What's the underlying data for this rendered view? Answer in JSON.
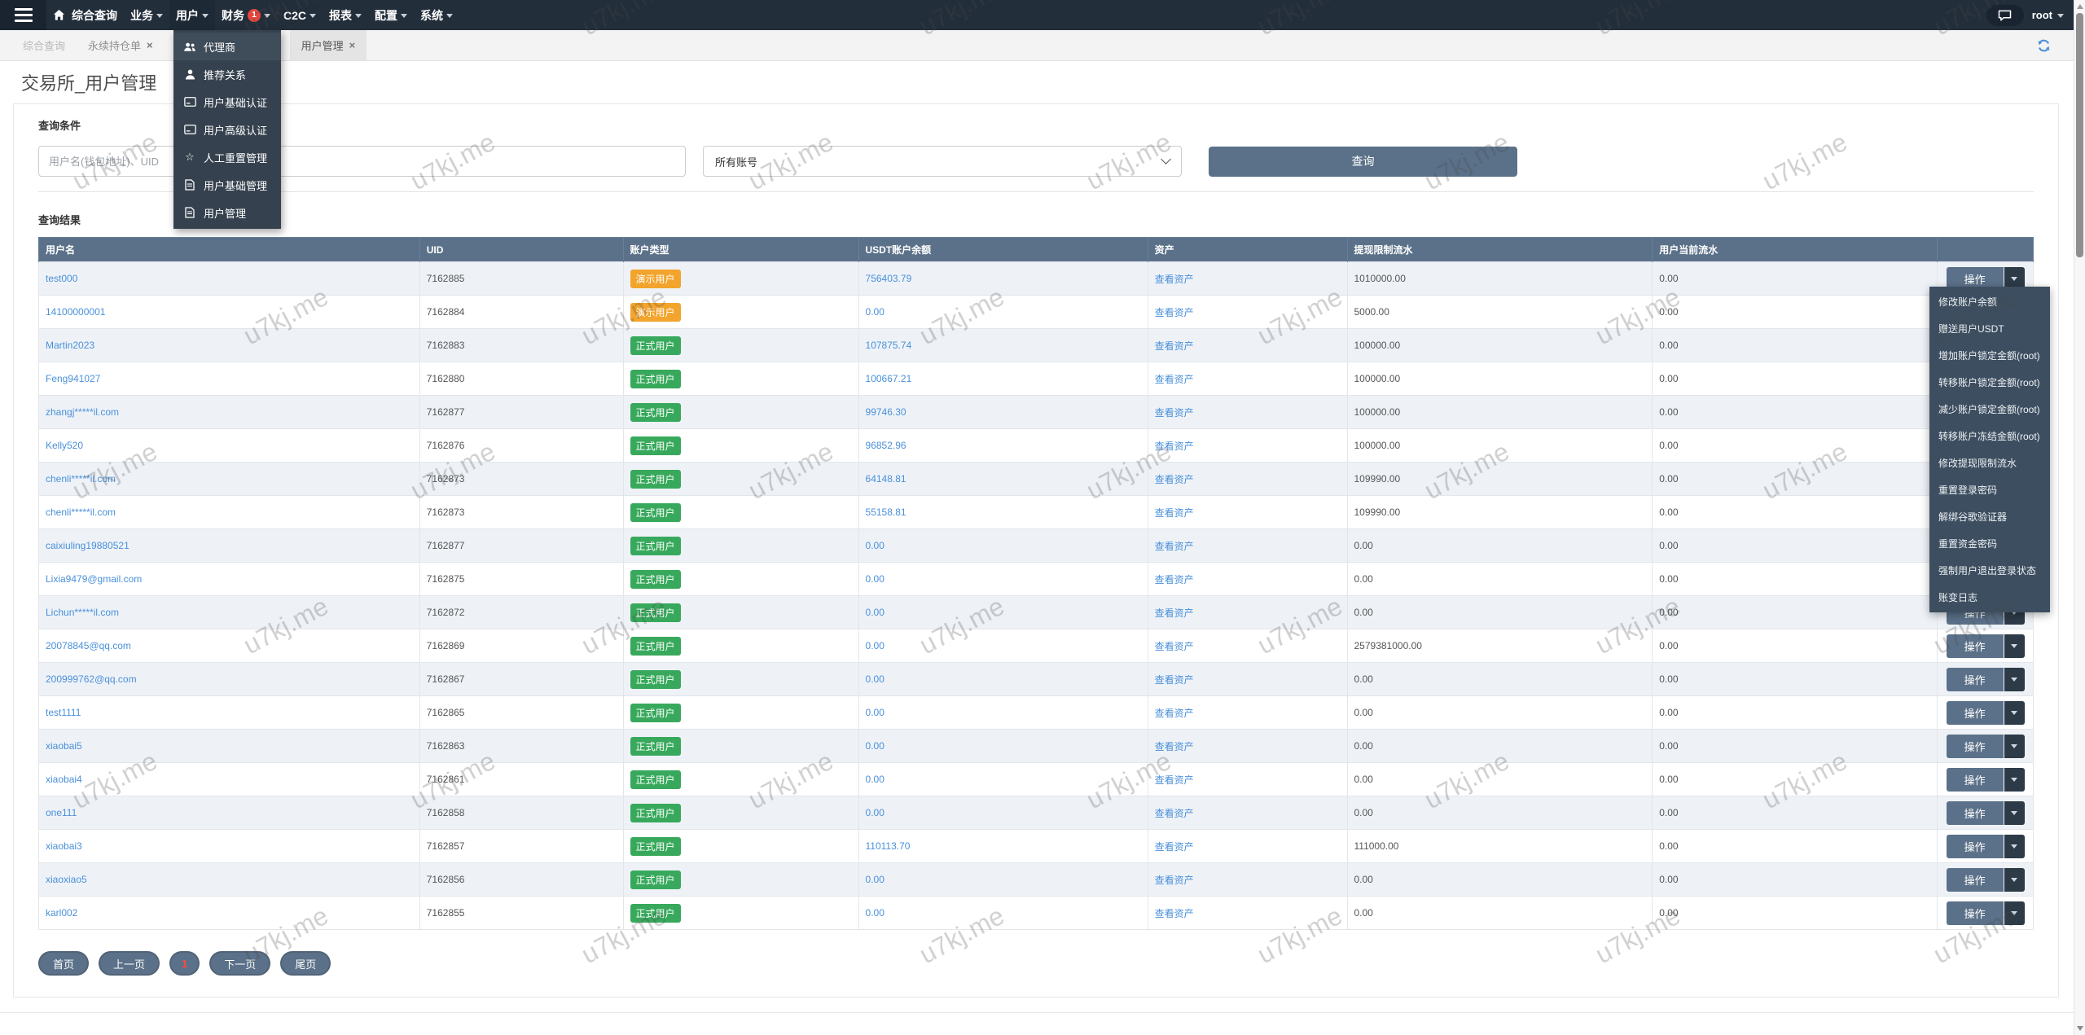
{
  "watermark": {
    "text": "u7kj.me"
  },
  "navbar": {
    "menu_items": [
      {
        "label": "综合查询"
      },
      {
        "label": "业务"
      },
      {
        "label": "用户"
      },
      {
        "label": "财务",
        "badge": "1"
      },
      {
        "label": "C2C"
      },
      {
        "label": "报表"
      },
      {
        "label": "配置"
      },
      {
        "label": "系统"
      }
    ],
    "user": {
      "name": "root"
    }
  },
  "user_dropdown": {
    "items": [
      {
        "icon": "users-icon",
        "label": "代理商"
      },
      {
        "icon": "user-icon",
        "label": "推荐关系"
      },
      {
        "icon": "id-card-icon",
        "label": "用户基础认证"
      },
      {
        "icon": "id-card-icon",
        "label": "用户高级认证"
      },
      {
        "icon": "star-icon",
        "label": "人工重置管理"
      },
      {
        "icon": "file-icon",
        "label": "用户基础管理"
      },
      {
        "icon": "file-icon",
        "label": "用户管理"
      }
    ]
  },
  "tabs": [
    {
      "label": "综合查询",
      "closable": false
    },
    {
      "label": "永续持仓单",
      "closable": true
    },
    {
      "label": "用户管理",
      "closable": true,
      "active": true
    }
  ],
  "page": {
    "title": "交易所_用户管理"
  },
  "query": {
    "section_title": "查询条件",
    "input_placeholder": "用户名(钱包地址)、UID",
    "select_value": "所有账号",
    "search_button": "查询"
  },
  "results": {
    "section_title": "查询结果",
    "columns": [
      "用户名",
      "UID",
      "账户类型",
      "USDT账户余额",
      "资产",
      "提现限制流水",
      "用户当前流水",
      ""
    ],
    "asset_link": "查看资产",
    "action_label": "操作",
    "badge_styles": {
      "demo": {
        "label": "演示用户",
        "color": "#f3a42c"
      },
      "official": {
        "label": "正式用户",
        "color": "#38a95c"
      }
    },
    "rows": [
      {
        "username": "test000",
        "uid": "7162885",
        "type": "demo",
        "usdt": "756403.79",
        "withdraw_limit": "1010000.00",
        "current_flow": "0.00"
      },
      {
        "username": "14100000001",
        "uid": "7162884",
        "type": "demo",
        "usdt": "0.00",
        "withdraw_limit": "5000.00",
        "current_flow": "0.00"
      },
      {
        "username": "Martin2023",
        "uid": "7162883",
        "type": "official",
        "usdt": "107875.74",
        "withdraw_limit": "100000.00",
        "current_flow": "0.00"
      },
      {
        "username": "Feng941027",
        "uid": "7162880",
        "type": "official",
        "usdt": "100667.21",
        "withdraw_limit": "100000.00",
        "current_flow": "0.00"
      },
      {
        "username": "zhangj*****il.com",
        "uid": "7162877",
        "type": "official",
        "usdt": "99746.30",
        "withdraw_limit": "100000.00",
        "current_flow": "0.00"
      },
      {
        "username": "Kelly520",
        "uid": "7162876",
        "type": "official",
        "usdt": "96852.96",
        "withdraw_limit": "100000.00",
        "current_flow": "0.00"
      },
      {
        "username": "chenli*****il.com",
        "uid": "7162873",
        "type": "official",
        "usdt": "64148.81",
        "withdraw_limit": "109990.00",
        "current_flow": "0.00"
      },
      {
        "username": "chenli*****il.com",
        "uid": "7162873",
        "type": "official",
        "usdt": "55158.81",
        "withdraw_limit": "109990.00",
        "current_flow": "0.00"
      },
      {
        "username": "caixiuling19880521",
        "uid": "7162877",
        "type": "official",
        "usdt": "0.00",
        "withdraw_limit": "0.00",
        "current_flow": "0.00"
      },
      {
        "username": "Lixia9479@gmail.com",
        "uid": "7162875",
        "type": "official",
        "usdt": "0.00",
        "withdraw_limit": "0.00",
        "current_flow": "0.00"
      },
      {
        "username": "Lichun*****il.com",
        "uid": "7162872",
        "type": "official",
        "usdt": "0.00",
        "withdraw_limit": "0.00",
        "current_flow": "0.00"
      },
      {
        "username": "20078845@qq.com",
        "uid": "7162869",
        "type": "official",
        "usdt": "0.00",
        "withdraw_limit": "2579381000.00",
        "current_flow": "0.00"
      },
      {
        "username": "200999762@qq.com",
        "uid": "7162867",
        "type": "official",
        "usdt": "0.00",
        "withdraw_limit": "0.00",
        "current_flow": "0.00"
      },
      {
        "username": "test1111",
        "uid": "7162865",
        "type": "official",
        "usdt": "0.00",
        "withdraw_limit": "0.00",
        "current_flow": "0.00"
      },
      {
        "username": "xiaobai5",
        "uid": "7162863",
        "type": "official",
        "usdt": "0.00",
        "withdraw_limit": "0.00",
        "current_flow": "0.00"
      },
      {
        "username": "xiaobai4",
        "uid": "7162861",
        "type": "official",
        "usdt": "0.00",
        "withdraw_limit": "0.00",
        "current_flow": "0.00"
      },
      {
        "username": "one111",
        "uid": "7162858",
        "type": "official",
        "usdt": "0.00",
        "withdraw_limit": "0.00",
        "current_flow": "0.00"
      },
      {
        "username": "xiaobai3",
        "uid": "7162857",
        "type": "official",
        "usdt": "110113.70",
        "withdraw_limit": "111000.00",
        "current_flow": "0.00"
      },
      {
        "username": "xiaoxiao5",
        "uid": "7162856",
        "type": "official",
        "usdt": "0.00",
        "withdraw_limit": "0.00",
        "current_flow": "0.00"
      },
      {
        "username": "karl002",
        "uid": "7162855",
        "type": "official",
        "usdt": "0.00",
        "withdraw_limit": "0.00",
        "current_flow": "0.00"
      }
    ]
  },
  "action_menu": {
    "items": [
      "修改账户余额",
      "赠送用户USDT",
      "增加账户锁定金额(root)",
      "转移账户锁定金额(root)",
      "减少账户锁定金额(root)",
      "转移账户冻结金额(root)",
      "修改提现限制流水",
      "重置登录密码",
      "解绑谷歌验证器",
      "重置资金密码",
      "强制用户退出登录状态",
      "账变日志"
    ]
  },
  "pagination": {
    "first": "首页",
    "prev": "上一页",
    "current": "1",
    "next": "下一页",
    "last": "尾页"
  }
}
